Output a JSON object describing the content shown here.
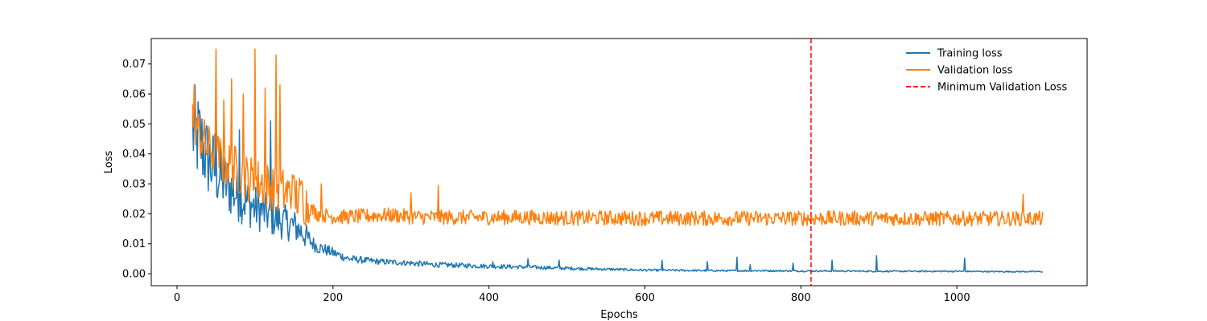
{
  "chart_data": {
    "type": "line",
    "title": "",
    "xlabel": "Epochs",
    "ylabel": "Loss",
    "xlim": [
      -33,
      1167
    ],
    "ylim": [
      -0.004,
      0.0785
    ],
    "x_ticks": [
      0,
      200,
      400,
      600,
      800,
      1000
    ],
    "y_ticks": [
      0.0,
      0.01,
      0.02,
      0.03,
      0.04,
      0.05,
      0.06,
      0.07
    ],
    "x_tick_labels": [
      "0",
      "200",
      "400",
      "600",
      "800",
      "1000"
    ],
    "y_tick_labels": [
      "0.00",
      "0.01",
      "0.02",
      "0.03",
      "0.04",
      "0.05",
      "0.06",
      "0.07"
    ],
    "grid": false,
    "legend_position": "top-right",
    "series": [
      {
        "name": "Training loss",
        "color": "#1f77b4",
        "x": [
          20,
          30,
          40,
          50,
          60,
          70,
          80,
          90,
          100,
          110,
          120,
          130,
          140,
          150,
          160,
          170,
          180,
          190,
          200,
          220,
          240,
          260,
          280,
          300,
          330,
          360,
          400,
          450,
          500,
          550,
          600,
          650,
          700,
          750,
          800,
          850,
          900,
          950,
          1000,
          1050,
          1110
        ],
        "y": [
          0.048,
          0.044,
          0.038,
          0.034,
          0.031,
          0.028,
          0.026,
          0.024,
          0.022,
          0.021,
          0.019,
          0.018,
          0.017,
          0.016,
          0.014,
          0.011,
          0.009,
          0.008,
          0.007,
          0.005,
          0.0045,
          0.004,
          0.0038,
          0.0035,
          0.003,
          0.0028,
          0.0025,
          0.0022,
          0.0018,
          0.0015,
          0.0012,
          0.0011,
          0.001,
          0.001,
          0.0009,
          0.0009,
          0.0008,
          0.0008,
          0.0008,
          0.0007,
          0.0007
        ],
        "spikes": [
          [
            50,
            0.055
          ],
          [
            80,
            0.048
          ],
          [
            120,
            0.051
          ],
          [
            405,
            0.004
          ],
          [
            450,
            0.005
          ],
          [
            490,
            0.0045
          ],
          [
            622,
            0.0045
          ],
          [
            680,
            0.004
          ],
          [
            718,
            0.0055
          ],
          [
            735,
            0.003
          ],
          [
            790,
            0.0035
          ],
          [
            840,
            0.0045
          ],
          [
            897,
            0.006
          ],
          [
            1010,
            0.0052
          ]
        ]
      },
      {
        "name": "Validation loss",
        "color": "#ff7f0e",
        "x": [
          20,
          30,
          40,
          50,
          60,
          70,
          80,
          90,
          100,
          110,
          120,
          130,
          140,
          150,
          160,
          170,
          180,
          190,
          200,
          220,
          240,
          260,
          280,
          300,
          330,
          360,
          400,
          450,
          500,
          550,
          600,
          650,
          700,
          750,
          800,
          850,
          900,
          950,
          1000,
          1050,
          1110
        ],
        "y": [
          0.053,
          0.046,
          0.042,
          0.04,
          0.037,
          0.036,
          0.034,
          0.032,
          0.031,
          0.03,
          0.029,
          0.028,
          0.027,
          0.026,
          0.025,
          0.022,
          0.02,
          0.0195,
          0.019,
          0.019,
          0.0192,
          0.0195,
          0.0195,
          0.019,
          0.0188,
          0.0188,
          0.0188,
          0.0188,
          0.0186,
          0.0186,
          0.0185,
          0.0185,
          0.0185,
          0.0185,
          0.0185,
          0.0185,
          0.0185,
          0.0184,
          0.0184,
          0.0184,
          0.0184
        ],
        "spikes": [
          [
            22,
            0.063
          ],
          [
            50,
            0.075
          ],
          [
            60,
            0.058
          ],
          [
            70,
            0.065
          ],
          [
            85,
            0.06
          ],
          [
            100,
            0.075
          ],
          [
            113,
            0.062
          ],
          [
            127,
            0.073
          ],
          [
            132,
            0.063
          ],
          [
            148,
            0.033
          ],
          [
            160,
            0.031
          ],
          [
            185,
            0.03
          ],
          [
            300,
            0.027
          ],
          [
            335,
            0.0295
          ],
          [
            1085,
            0.0265
          ]
        ]
      }
    ],
    "vline": {
      "name": "Minimum Validation Loss",
      "x": 813,
      "color": "#ff0000",
      "style": "dashed"
    }
  }
}
